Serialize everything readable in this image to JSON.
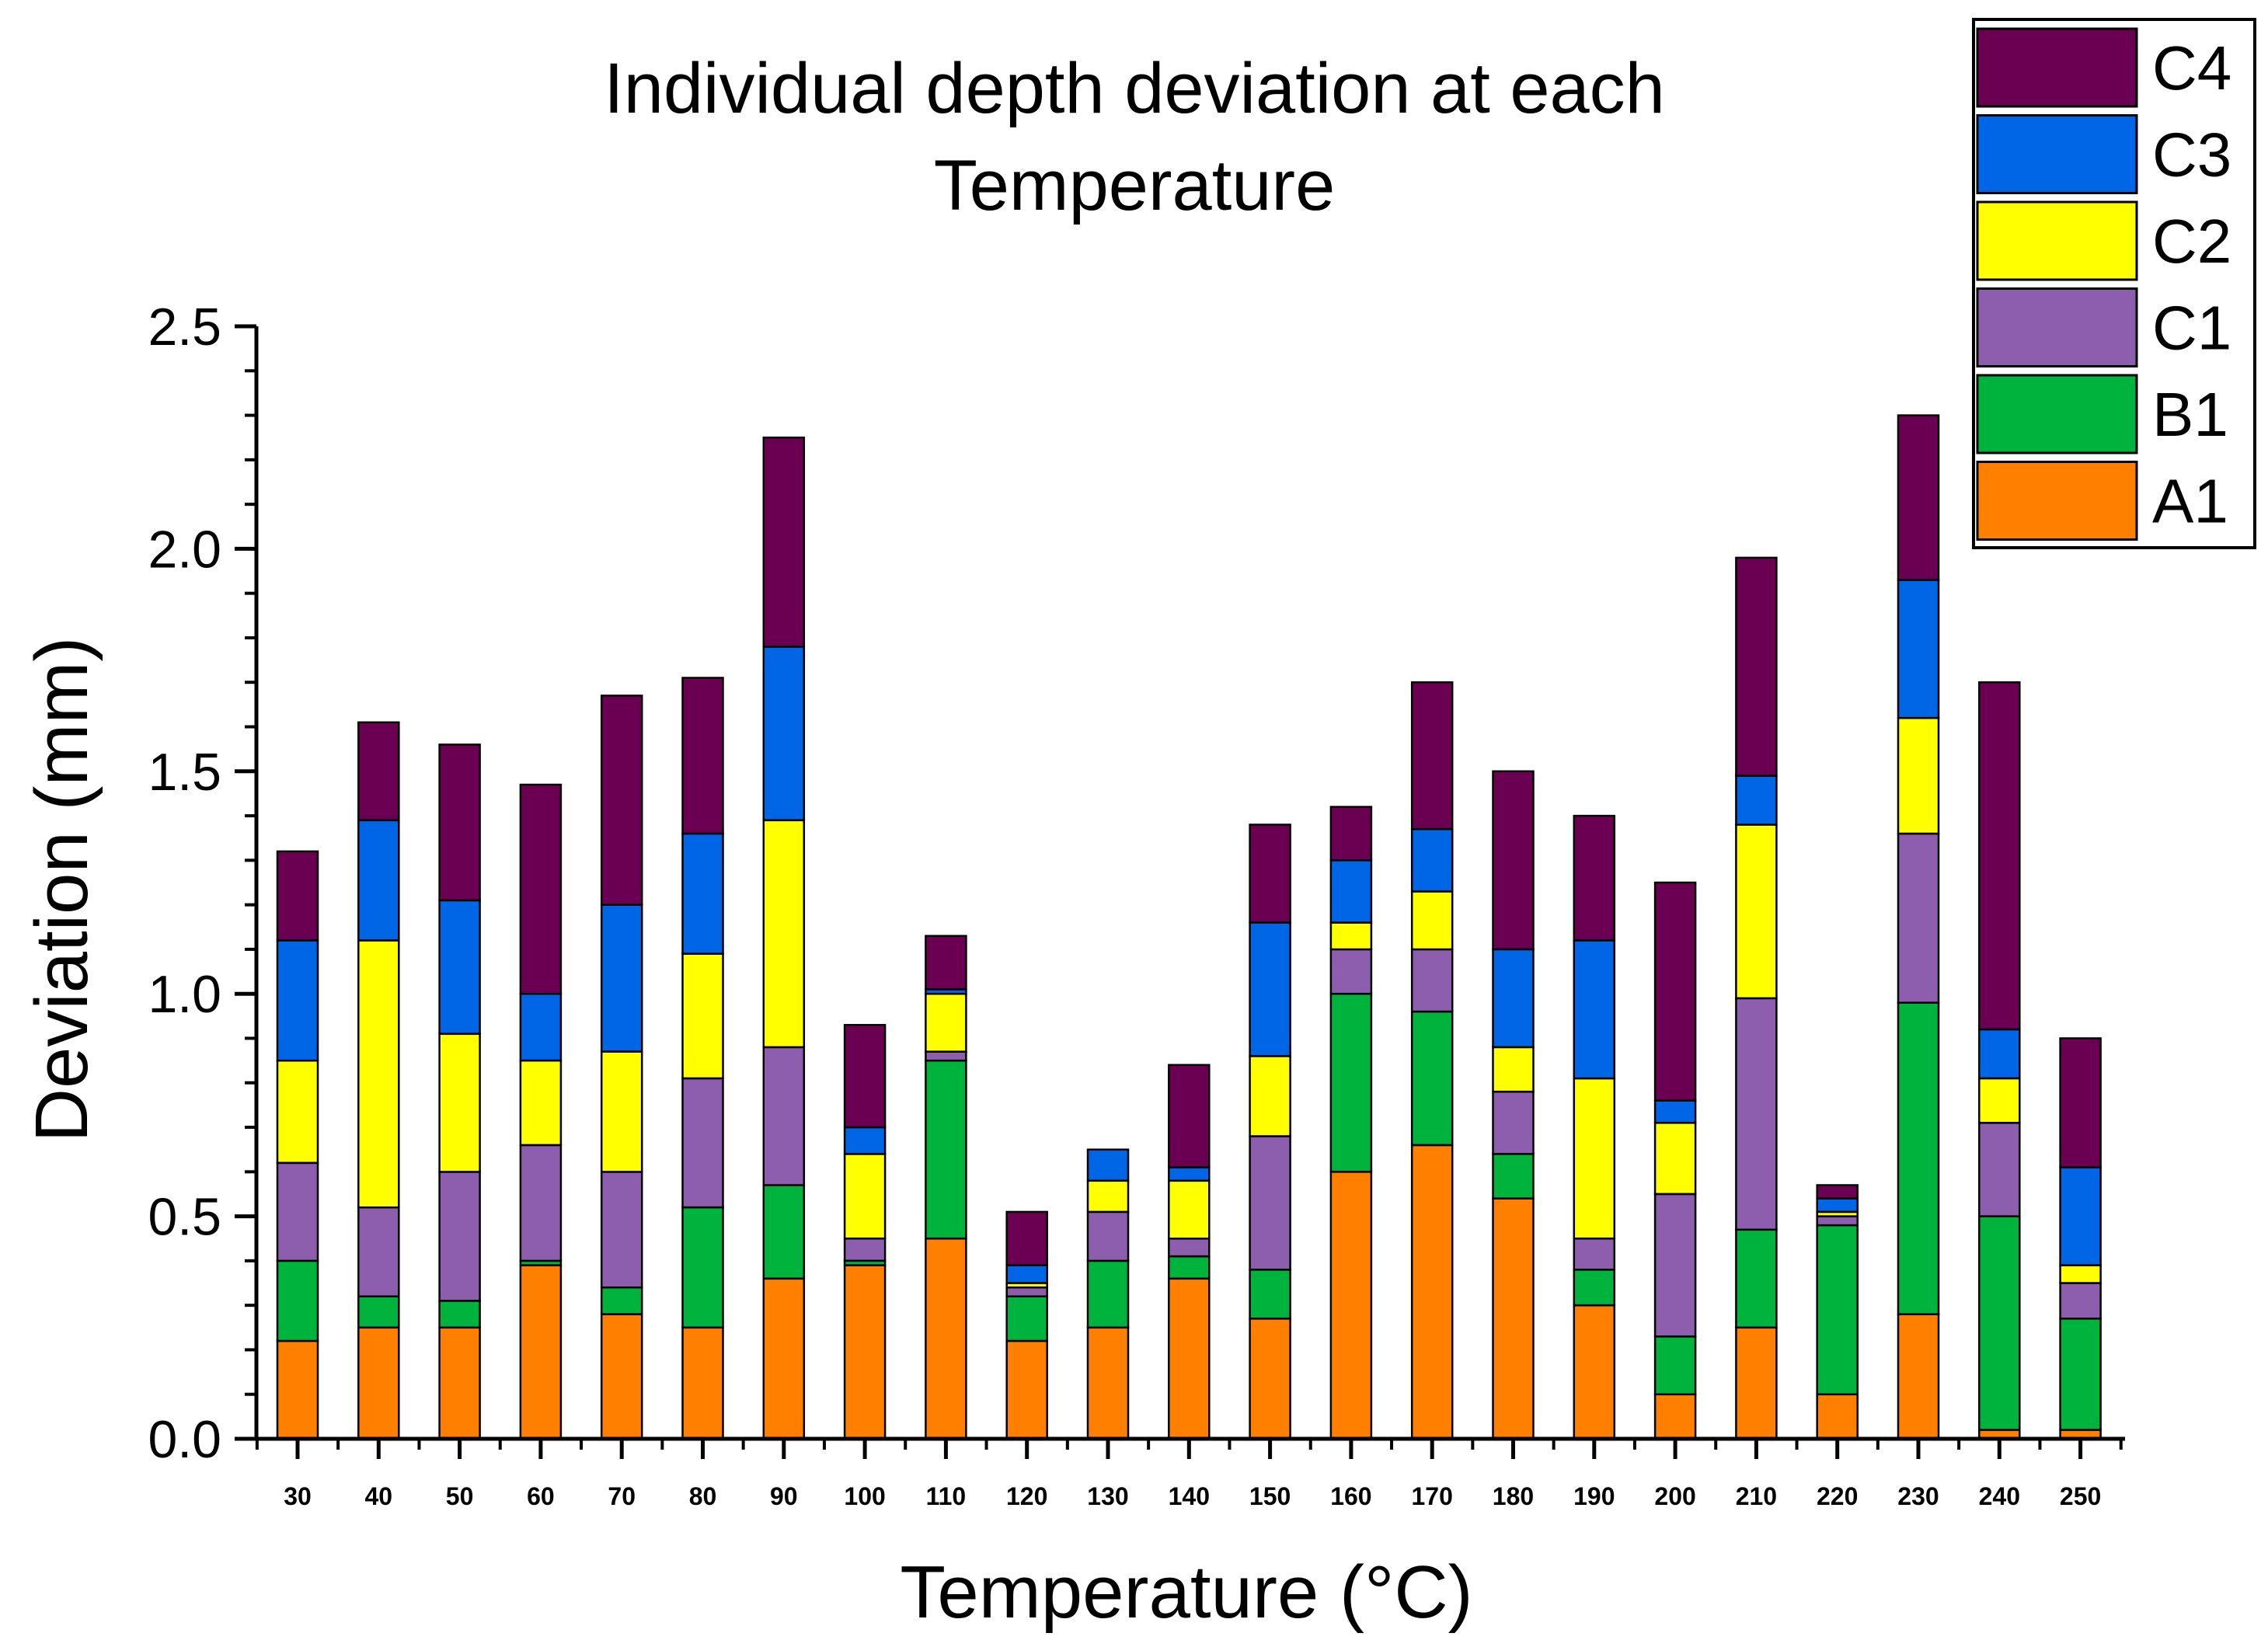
{
  "chart_data": {
    "type": "bar",
    "stacked": true,
    "title": [
      "Individual depth deviation at each",
      "Temperature"
    ],
    "xlabel": "Temperature (°C)",
    "ylabel": "Deviation (mm)",
    "ylim": [
      0,
      2.5
    ],
    "yticks": [
      "0.0",
      "0.5",
      "1.0",
      "1.5",
      "2.0",
      "2.5"
    ],
    "ytick_values": [
      0,
      0.5,
      1.0,
      1.5,
      2.0,
      2.5
    ],
    "categories": [
      "30",
      "40",
      "50",
      "60",
      "70",
      "80",
      "90",
      "100",
      "110",
      "120",
      "130",
      "140",
      "150",
      "160",
      "170",
      "180",
      "190",
      "200",
      "210",
      "220",
      "230",
      "240",
      "250"
    ],
    "legend_position": "top-right",
    "series": [
      {
        "name": "A1",
        "color": "#FF8000",
        "values": [
          0.22,
          0.25,
          0.25,
          0.39,
          0.28,
          0.25,
          0.36,
          0.39,
          0.45,
          0.22,
          0.25,
          0.36,
          0.27,
          0.6,
          0.66,
          0.54,
          0.3,
          0.1,
          0.25,
          0.1,
          0.28,
          0.02,
          0.02
        ]
      },
      {
        "name": "B1",
        "color": "#00B33C",
        "values": [
          0.18,
          0.07,
          0.06,
          0.01,
          0.06,
          0.27,
          0.21,
          0.01,
          0.4,
          0.1,
          0.15,
          0.05,
          0.11,
          0.4,
          0.3,
          0.1,
          0.08,
          0.13,
          0.22,
          0.38,
          0.7,
          0.48,
          0.25
        ]
      },
      {
        "name": "C1",
        "color": "#8C5EAD",
        "values": [
          0.22,
          0.2,
          0.29,
          0.26,
          0.26,
          0.29,
          0.31,
          0.05,
          0.02,
          0.02,
          0.11,
          0.04,
          0.3,
          0.1,
          0.14,
          0.14,
          0.07,
          0.32,
          0.52,
          0.02,
          0.38,
          0.21,
          0.08
        ]
      },
      {
        "name": "C2",
        "color": "#FFFF00",
        "values": [
          0.23,
          0.6,
          0.31,
          0.19,
          0.27,
          0.28,
          0.51,
          0.19,
          0.13,
          0.01,
          0.07,
          0.13,
          0.18,
          0.06,
          0.13,
          0.1,
          0.36,
          0.16,
          0.39,
          0.01,
          0.26,
          0.1,
          0.04
        ]
      },
      {
        "name": "C3",
        "color": "#0066E6",
        "values": [
          0.27,
          0.27,
          0.3,
          0.15,
          0.33,
          0.27,
          0.39,
          0.06,
          0.01,
          0.04,
          0.07,
          0.03,
          0.3,
          0.14,
          0.14,
          0.22,
          0.31,
          0.05,
          0.11,
          0.03,
          0.31,
          0.11,
          0.22
        ]
      },
      {
        "name": "C4",
        "color": "#6B0052",
        "values": [
          0.2,
          0.22,
          0.35,
          0.47,
          0.47,
          0.35,
          0.47,
          0.23,
          0.12,
          0.12,
          0.0,
          0.23,
          0.22,
          0.12,
          0.33,
          0.4,
          0.28,
          0.49,
          0.49,
          0.03,
          0.37,
          0.78,
          0.29
        ]
      }
    ]
  }
}
